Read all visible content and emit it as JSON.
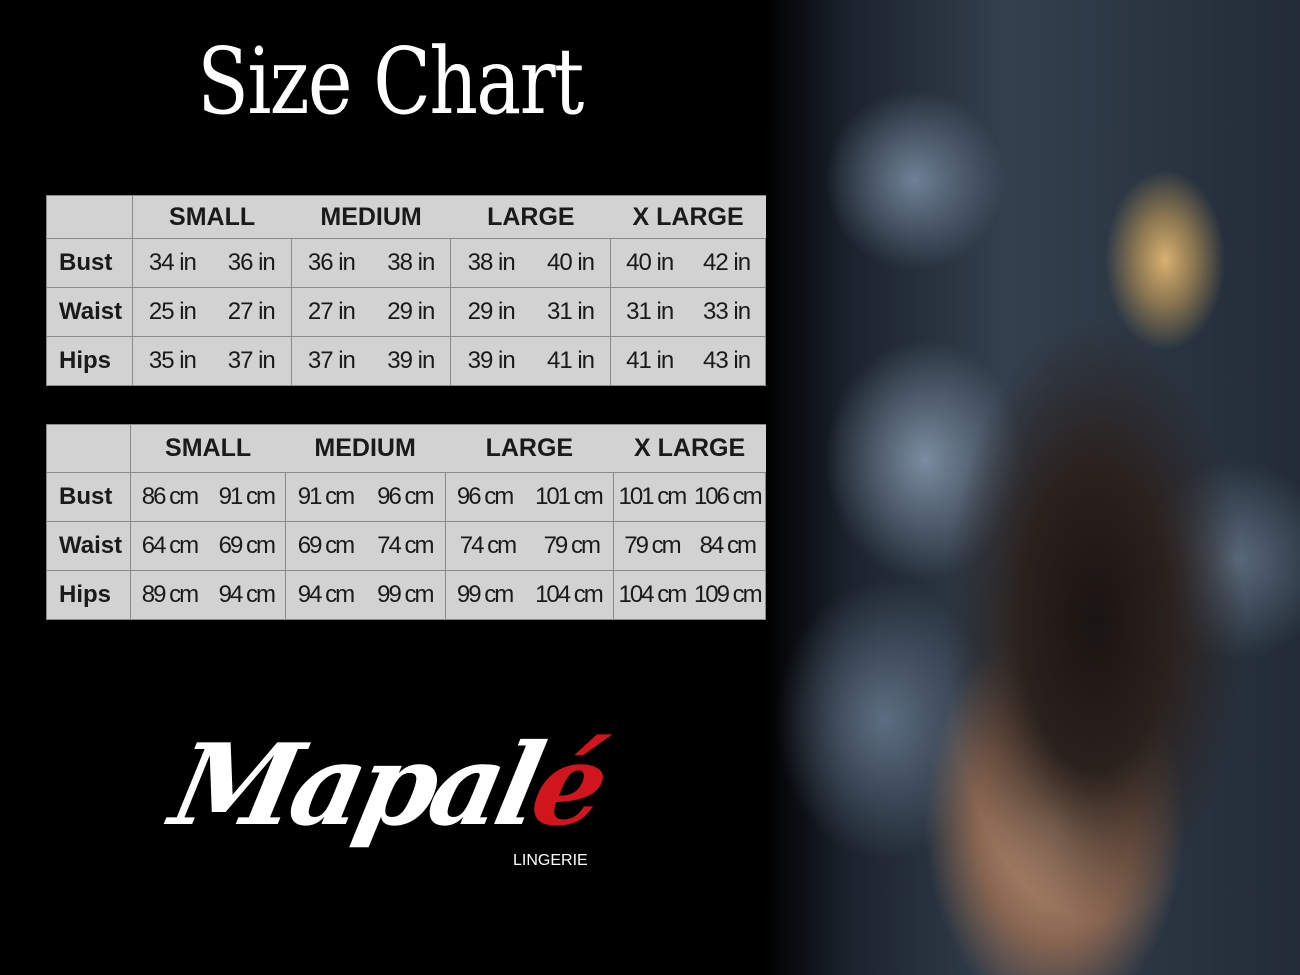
{
  "title": "Size Chart",
  "sizes": [
    "SMALL",
    "MEDIUM",
    "LARGE",
    "X LARGE"
  ],
  "inches": {
    "rows": [
      {
        "label": "Bust",
        "values": [
          [
            "34 in",
            "36 in"
          ],
          [
            "36 in",
            "38 in"
          ],
          [
            "38 in",
            "40 in"
          ],
          [
            "40 in",
            "42 in"
          ]
        ]
      },
      {
        "label": "Waist",
        "values": [
          [
            "25 in",
            "27 in"
          ],
          [
            "27 in",
            "29 in"
          ],
          [
            "29 in",
            "31 in"
          ],
          [
            "31 in",
            "33 in"
          ]
        ]
      },
      {
        "label": "Hips",
        "values": [
          [
            "35 in",
            "37 in"
          ],
          [
            "37 in",
            "39 in"
          ],
          [
            "39 in",
            "41 in"
          ],
          [
            "41 in",
            "43 in"
          ]
        ]
      }
    ]
  },
  "cm": {
    "rows": [
      {
        "label": "Bust",
        "values": [
          [
            "86 cm",
            "91 cm"
          ],
          [
            "91 cm",
            "96 cm"
          ],
          [
            "96 cm",
            "101 cm"
          ],
          [
            "101 cm",
            "106 cm"
          ]
        ]
      },
      {
        "label": "Waist",
        "values": [
          [
            "64 cm",
            "69 cm"
          ],
          [
            "69 cm",
            "74 cm"
          ],
          [
            "74 cm",
            "79  cm"
          ],
          [
            "79 cm",
            "84 cm"
          ]
        ]
      },
      {
        "label": "Hips",
        "values": [
          [
            "89 cm",
            "94 cm"
          ],
          [
            "94 cm",
            "99 cm"
          ],
          [
            "99 cm",
            "104 cm"
          ],
          [
            "104 cm",
            "109 cm"
          ]
        ]
      }
    ]
  },
  "logo": {
    "main": "Mapal",
    "accent": "é",
    "sub": "LINGERIE",
    "accent_color": "#d0161c"
  }
}
